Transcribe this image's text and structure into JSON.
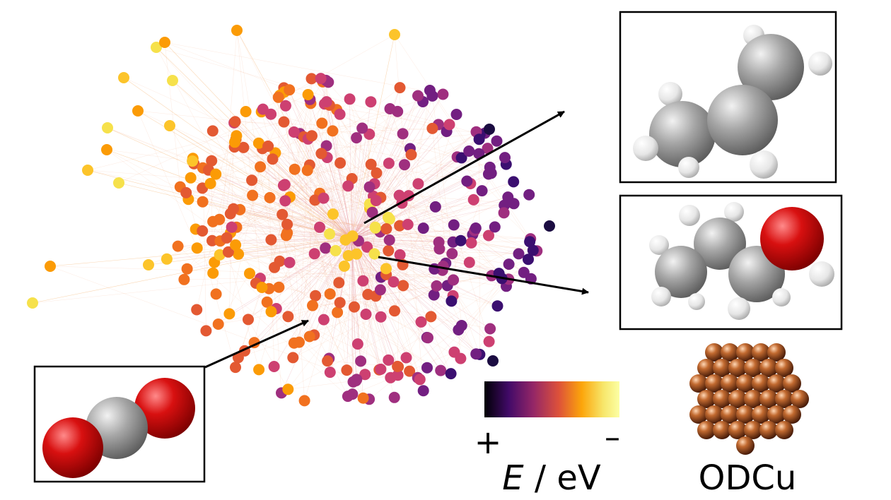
{
  "figure": {
    "colorbar": {
      "plus_label": "+",
      "minus_label": "–",
      "axis_var": "E",
      "axis_unit": " / eV",
      "gradient": [
        "#000004",
        "#420a68",
        "#932667",
        "#dd513a",
        "#fca50a",
        "#f7e66a",
        "#fcffa4"
      ]
    },
    "catalyst_label": "ODCu",
    "atom_colors": {
      "carbon": "#9a9a9a",
      "oxygen": "#d01010",
      "hydrogen": "#e8e8e8",
      "copper": "#b05a28"
    },
    "network_palette": [
      "#3b0f70",
      "#721f81",
      "#9f2f7f",
      "#cd4071",
      "#e35932",
      "#f1711f",
      "#fb9b06",
      "#fcc42a",
      "#f6e14b"
    ]
  }
}
